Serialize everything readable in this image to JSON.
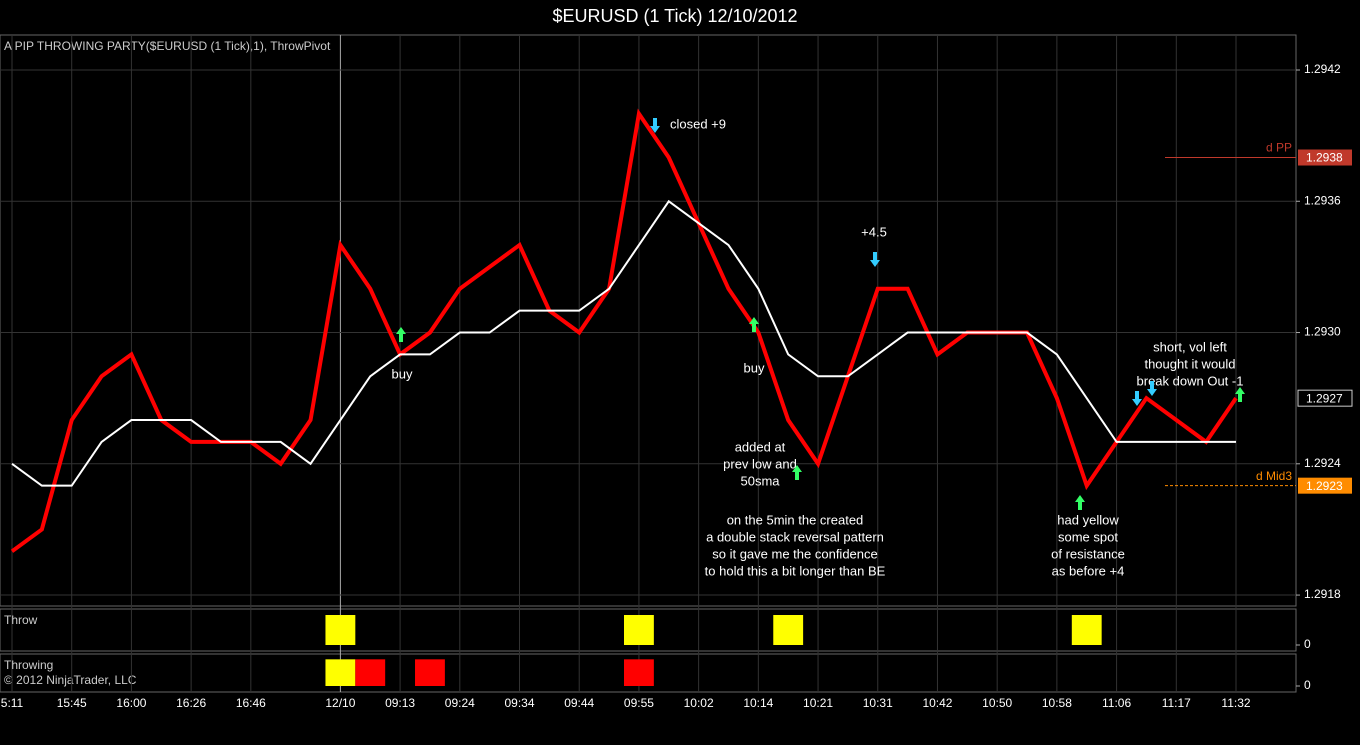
{
  "title": "$EURUSD (1 Tick)  12/10/2012",
  "indicator_label": "A PIP THROWING PARTY($EURUSD (1 Tick),1), ThrowPivot",
  "copyright": "© 2012 NinjaTrader, LLC",
  "chart_data": [
    {
      "type": "line",
      "categories": [
        "5:11",
        null,
        "15:45",
        null,
        "16:00",
        null,
        "16:26",
        null,
        "16:46",
        null,
        null,
        "12/10",
        null,
        "09:13",
        null,
        "09:24",
        null,
        "09:34",
        null,
        "09:44",
        null,
        "09:55",
        null,
        "10:02",
        null,
        "10:14",
        null,
        "10:21",
        null,
        "10:31",
        null,
        "10:42",
        null,
        "10:50",
        null,
        "10:58",
        null,
        "11:06",
        null,
        "11:17",
        null,
        "11:32"
      ],
      "series": [
        {
          "color": "#ff0000",
          "values": [
            1.292,
            1.2921,
            1.2926,
            1.2928,
            1.2929,
            1.2926,
            1.2925,
            1.2925,
            1.2925,
            1.2924,
            1.2926,
            1.2934,
            1.2932,
            1.2929,
            1.293,
            1.2932,
            1.2933,
            1.2934,
            1.2931,
            1.293,
            1.2932,
            1.294,
            1.2938,
            1.2935,
            1.2932,
            1.293,
            1.2926,
            1.2924,
            1.2928,
            1.2932,
            1.2932,
            1.2929,
            1.293,
            1.293,
            1.293,
            1.2927,
            1.2923,
            1.2925,
            1.2927,
            1.2926,
            1.2925,
            1.2927
          ]
        },
        {
          "color": "#ffffff",
          "values": [
            1.2924,
            1.2923,
            1.2923,
            1.2925,
            1.2926,
            1.2926,
            1.2926,
            1.2925,
            1.2925,
            1.2925,
            1.2924,
            1.2926,
            1.2928,
            1.2929,
            1.2929,
            1.293,
            1.293,
            1.2931,
            1.2931,
            1.2931,
            1.2932,
            1.2934,
            1.2936,
            1.2935,
            1.2934,
            1.2932,
            1.2929,
            1.2928,
            1.2928,
            1.2929,
            1.293,
            1.293,
            1.293,
            1.293,
            1.293,
            1.2929,
            1.2927,
            1.2925,
            1.2925,
            1.2925,
            1.2925,
            1.2925
          ]
        }
      ],
      "ylim": [
        1.29175,
        1.29436
      ],
      "yticks": [
        1.2918,
        1.2924,
        {
          "value": 1.293,
          "label": "1.2930"
        },
        1.2936,
        1.2942
      ],
      "grid": true,
      "levels": [
        {
          "name": "d PP",
          "value": 1.2938,
          "color": "#c0392b"
        },
        {
          "name": "d Mid3",
          "value": 1.2923,
          "color": "#ff8c00"
        }
      ],
      "last_price": 1.2927,
      "annotations": [
        [
          "closed +9"
        ],
        [
          "+4.5"
        ],
        [
          "buy"
        ],
        [
          "buy"
        ],
        [
          "added at",
          "prev low and",
          "50sma"
        ],
        [
          "on the 5min the created",
          "a double stack reversal pattern",
          "so it gave me the confidence",
          "to hold this a bit longer than BE"
        ],
        [
          "had yellow",
          "some spot",
          "of resistance",
          "as before +4"
        ],
        [
          "short, vol left",
          "thought it would",
          "break down Out -1"
        ]
      ]
    },
    {
      "type": "bar",
      "title": "Throw",
      "series": [
        {
          "color": "#ffff00",
          "values": [
            0,
            0,
            0,
            0,
            0,
            0,
            0,
            0,
            0,
            0,
            0,
            1,
            0,
            0,
            0,
            0,
            0,
            0,
            0,
            0,
            0,
            1,
            0,
            0,
            0,
            0,
            1,
            0,
            0,
            0,
            0,
            0,
            0,
            0,
            0,
            0,
            1,
            0,
            0,
            0,
            0,
            0
          ]
        }
      ],
      "ylim": [
        0,
        1.2
      ],
      "yticks": [
        0
      ]
    },
    {
      "type": "bar",
      "title": "Throwing",
      "series": [
        {
          "color": "#ffff00",
          "values": [
            0,
            0,
            0,
            0,
            0,
            0,
            0,
            0,
            0,
            0,
            0,
            1,
            0,
            0,
            0,
            0,
            0,
            0,
            0,
            0,
            0,
            0,
            0,
            0,
            0,
            0,
            0,
            0,
            0,
            0,
            0,
            0,
            0,
            0,
            0,
            0,
            0,
            0,
            0,
            0,
            0,
            0
          ]
        },
        {
          "color": "#ff0000",
          "values": [
            0,
            0,
            0,
            0,
            0,
            0,
            0,
            0,
            0,
            0,
            0,
            0,
            1,
            0,
            1,
            0,
            0,
            0,
            0,
            0,
            0,
            1,
            0,
            0,
            0,
            0,
            0,
            0,
            0,
            0,
            0,
            0,
            0,
            0,
            0,
            0,
            0,
            0,
            0,
            0,
            0,
            0
          ]
        }
      ],
      "ylim": [
        0,
        1.2
      ],
      "yticks": [
        0
      ]
    }
  ]
}
